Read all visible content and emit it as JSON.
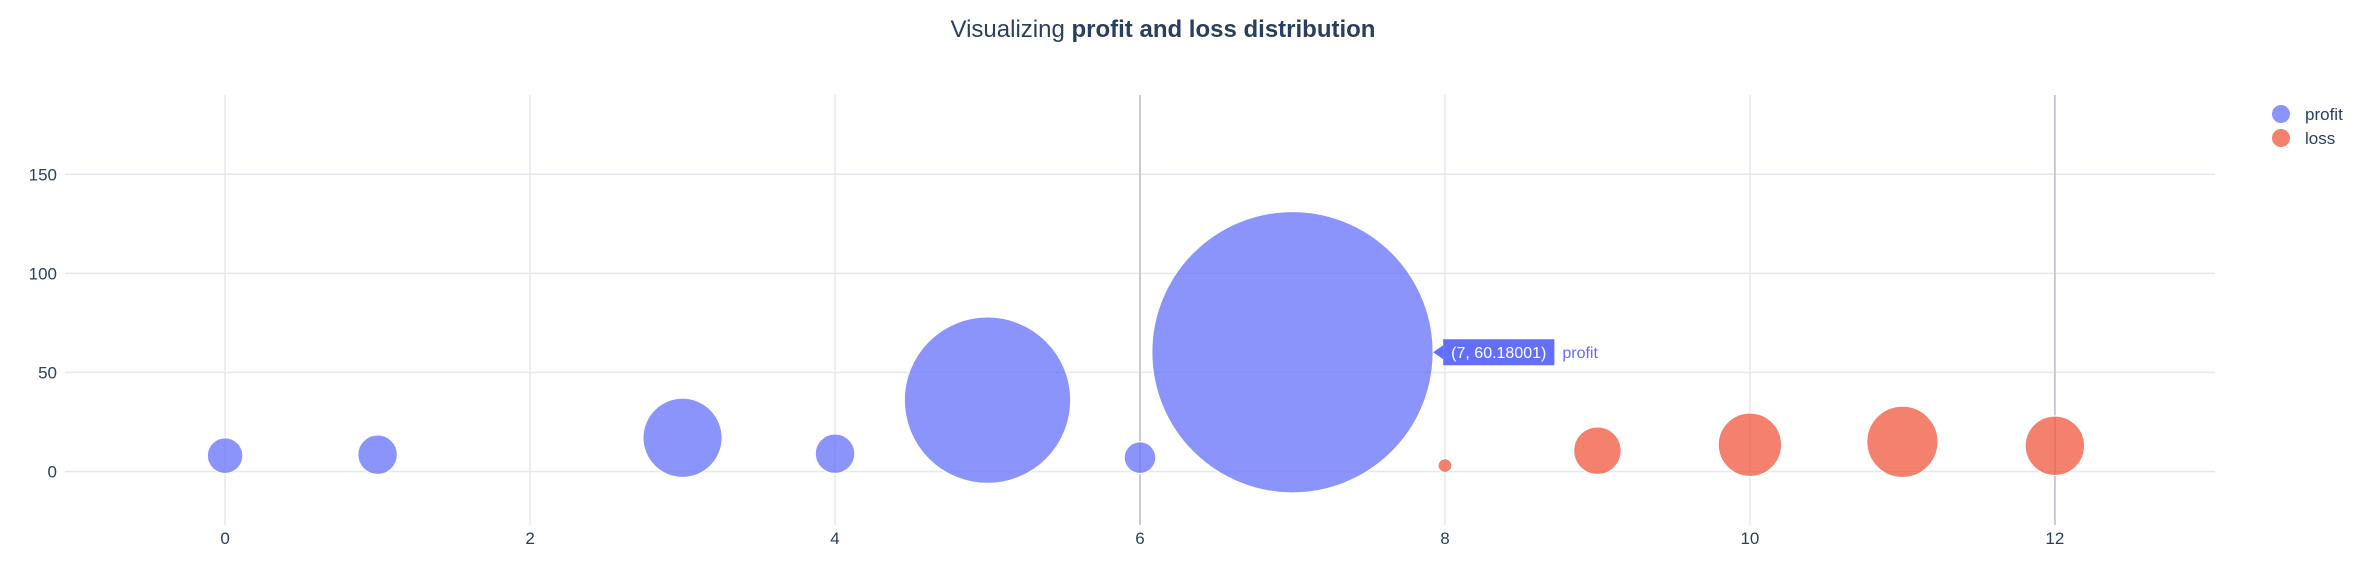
{
  "chart_data": {
    "type": "scatter",
    "subtype": "bubble",
    "title": {
      "prefix": "Visualizing ",
      "bold": "profit and loss distribution"
    },
    "xlabel": "",
    "ylabel": "",
    "xlim": [
      -1.05,
      13.05
    ],
    "ylim": [
      -27,
      190
    ],
    "x_ticks": [
      0,
      2,
      4,
      6,
      8,
      10,
      12
    ],
    "x_tick_labels": [
      "0",
      "2",
      "4",
      "6",
      "8",
      "10",
      "12"
    ],
    "y_ticks": [
      0,
      50,
      100,
      150
    ],
    "y_tick_labels": [
      "0",
      "50",
      "100",
      "150"
    ],
    "grid": true,
    "legend_position": "top-right",
    "series": [
      {
        "name": "profit",
        "color": "#636efa",
        "points": [
          {
            "x": 0,
            "y": 8,
            "size": 9
          },
          {
            "x": 1,
            "y": 8.5,
            "size": 10
          },
          {
            "x": 2,
            "y": 0,
            "size": 0
          },
          {
            "x": 3,
            "y": 17,
            "size": 20
          },
          {
            "x": 4,
            "y": 9,
            "size": 10
          },
          {
            "x": 5,
            "y": 36,
            "size": 42
          },
          {
            "x": 6,
            "y": 7,
            "size": 8
          },
          {
            "x": 7,
            "y": 60.18001,
            "size": 71
          }
        ]
      },
      {
        "name": "loss",
        "color": "#ef553b",
        "points": [
          {
            "x": 8,
            "y": 3,
            "size": 3.5
          },
          {
            "x": 9,
            "y": 10.5,
            "size": 12
          },
          {
            "x": 10,
            "y": 13.5,
            "size": 16
          },
          {
            "x": 11,
            "y": 15,
            "size": 18
          },
          {
            "x": 12,
            "y": 13,
            "size": 15
          }
        ]
      }
    ],
    "hover": {
      "x": 7,
      "label": "(7, 60.18001)",
      "series": "profit"
    },
    "spikeline_x": 6,
    "spikeline_x2": 12
  }
}
